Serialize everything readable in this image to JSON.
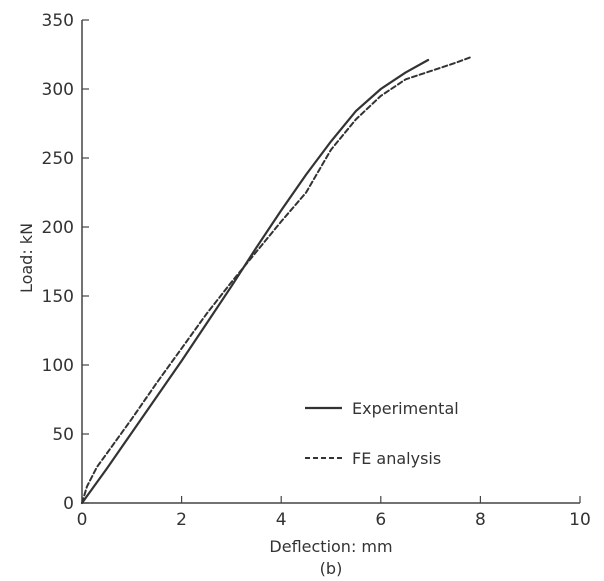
{
  "chart_data": {
    "type": "line",
    "xlabel": "Deflection: mm",
    "ylabel": "Load: kN",
    "caption": "(b)",
    "xlim": [
      0,
      10
    ],
    "ylim": [
      0,
      350
    ],
    "x_ticks": [
      0,
      2,
      4,
      6,
      8,
      10
    ],
    "y_ticks": [
      0,
      50,
      100,
      150,
      200,
      250,
      300,
      350
    ],
    "grid": false,
    "legend_position": "bottom-right",
    "series": [
      {
        "name": "Experimental",
        "style": "solid",
        "color": "#333333",
        "x": [
          0,
          0.5,
          1,
          1.5,
          2,
          2.5,
          3,
          3.5,
          4,
          4.5,
          5,
          5.5,
          6,
          6.5,
          6.95
        ],
        "y": [
          0,
          25,
          51,
          77,
          103,
          130,
          157,
          185,
          212,
          238,
          262,
          284,
          300,
          312,
          321
        ]
      },
      {
        "name": "FE analysis",
        "style": "dashed",
        "color": "#333333",
        "x": [
          0,
          0.1,
          0.3,
          0.6,
          1,
          1.5,
          2,
          2.5,
          3,
          3.5,
          4,
          4.5,
          5,
          5.5,
          6,
          6.5,
          7,
          7.5,
          7.8
        ],
        "y": [
          0,
          12,
          26,
          41,
          61,
          87,
          112,
          137,
          160,
          182,
          204,
          225,
          256,
          278,
          295,
          307,
          313,
          319,
          323
        ]
      }
    ]
  }
}
